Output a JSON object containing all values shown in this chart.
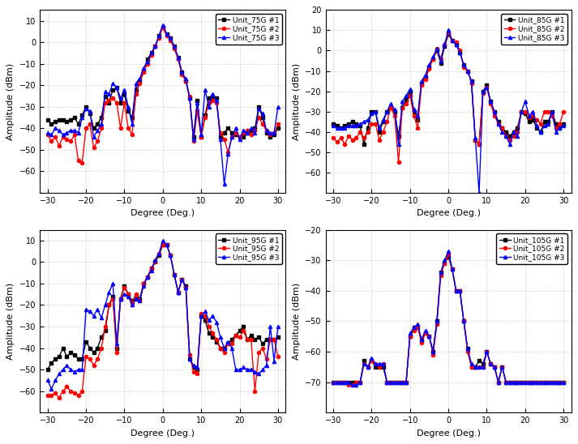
{
  "degrees": [
    -30,
    -29,
    -28,
    -27,
    -26,
    -25,
    -24,
    -23,
    -22,
    -21,
    -20,
    -19,
    -18,
    -17,
    -16,
    -15,
    -14,
    -13,
    -12,
    -11,
    -10,
    -9,
    -8,
    -7,
    -6,
    -5,
    -4,
    -3,
    -2,
    -1,
    0,
    1,
    2,
    3,
    4,
    5,
    6,
    7,
    8,
    9,
    10,
    11,
    12,
    13,
    14,
    15,
    16,
    17,
    18,
    19,
    20,
    21,
    22,
    23,
    24,
    25,
    26,
    27,
    28,
    29,
    30
  ],
  "p75_1": [
    -36,
    -38,
    -37,
    -36,
    -36,
    -37,
    -36,
    -35,
    -38,
    -34,
    -30,
    -33,
    -40,
    -38,
    -35,
    -25,
    -28,
    -22,
    -21,
    -28,
    -24,
    -32,
    -35,
    -22,
    -18,
    -13,
    -8,
    -5,
    -2,
    3,
    7,
    4,
    2,
    -2,
    -7,
    -14,
    -18,
    -26,
    -44,
    -27,
    -44,
    -34,
    -26,
    -25,
    -26,
    -44,
    -42,
    -40,
    -42,
    -43,
    -44,
    -44,
    -42,
    -41,
    -40,
    -30,
    -35,
    -42,
    -44,
    -43,
    -40
  ],
  "p75_2": [
    -43,
    -46,
    -44,
    -48,
    -44,
    -45,
    -46,
    -43,
    -55,
    -56,
    -40,
    -38,
    -49,
    -46,
    -40,
    -28,
    -27,
    -26,
    -28,
    -40,
    -28,
    -40,
    -43,
    -24,
    -19,
    -14,
    -10,
    -6,
    -2,
    2,
    7,
    3,
    1,
    -3,
    -8,
    -15,
    -18,
    -25,
    -46,
    -32,
    -44,
    -35,
    -28,
    -27,
    -28,
    -42,
    -45,
    -51,
    -44,
    -42,
    -44,
    -42,
    -41,
    -43,
    -41,
    -35,
    -38,
    -41,
    -43,
    -42,
    -38
  ],
  "p75_3": [
    -42,
    -43,
    -40,
    -41,
    -43,
    -42,
    -41,
    -41,
    -42,
    -35,
    -31,
    -32,
    -44,
    -41,
    -38,
    -23,
    -24,
    -19,
    -21,
    -26,
    -22,
    -30,
    -38,
    -19,
    -17,
    -12,
    -9,
    -5,
    -2,
    3,
    8,
    4,
    2,
    -2,
    -7,
    -14,
    -17,
    -26,
    -45,
    -28,
    -43,
    -22,
    -30,
    -24,
    -27,
    -45,
    -66,
    -52,
    -44,
    -40,
    -45,
    -41,
    -42,
    -40,
    -42,
    -31,
    -33,
    -41,
    -42,
    -42,
    -30
  ],
  "p85_1": [
    -36,
    -37,
    -38,
    -37,
    -36,
    -35,
    -36,
    -37,
    -46,
    -38,
    -30,
    -30,
    -40,
    -35,
    -30,
    -28,
    -30,
    -42,
    -28,
    -24,
    -20,
    -30,
    -34,
    -16,
    -13,
    -8,
    -4,
    0,
    -6,
    2,
    8,
    5,
    3,
    -1,
    -7,
    -10,
    -15,
    -44,
    -46,
    -20,
    -17,
    -25,
    -30,
    -35,
    -38,
    -40,
    -42,
    -40,
    -38,
    -30,
    -31,
    -35,
    -34,
    -38,
    -40,
    -35,
    -35,
    -30,
    -36,
    -38,
    -36
  ],
  "p85_2": [
    -43,
    -45,
    -43,
    -46,
    -42,
    -44,
    -43,
    -40,
    -43,
    -40,
    -36,
    -36,
    -44,
    -40,
    -35,
    -28,
    -32,
    -55,
    -28,
    -26,
    -22,
    -32,
    -38,
    -17,
    -14,
    -9,
    -4,
    1,
    -4,
    3,
    9,
    5,
    4,
    0,
    -8,
    -10,
    -16,
    -44,
    -46,
    -21,
    -18,
    -26,
    -32,
    -36,
    -38,
    -42,
    -44,
    -42,
    -40,
    -30,
    -30,
    -33,
    -32,
    -34,
    -36,
    -30,
    -30,
    -32,
    -38,
    -36,
    -30
  ],
  "p85_3": [
    -37,
    -38,
    -38,
    -38,
    -37,
    -37,
    -37,
    -36,
    -35,
    -34,
    -31,
    -30,
    -38,
    -34,
    -30,
    -26,
    -29,
    -46,
    -25,
    -22,
    -19,
    -29,
    -32,
    -15,
    -12,
    -7,
    -3,
    1,
    -5,
    3,
    10,
    5,
    3,
    -1,
    -7,
    -10,
    -15,
    -43,
    -70,
    -20,
    -18,
    -25,
    -30,
    -36,
    -40,
    -42,
    -46,
    -40,
    -42,
    -30,
    -25,
    -32,
    -30,
    -37,
    -40,
    -37,
    -36,
    -30,
    -40,
    -38,
    -37
  ],
  "p95_1": [
    -50,
    -47,
    -45,
    -44,
    -40,
    -44,
    -42,
    -43,
    -45,
    -45,
    -37,
    -40,
    -42,
    -40,
    -35,
    -32,
    -20,
    -16,
    -40,
    -17,
    -11,
    -15,
    -18,
    -16,
    -17,
    -10,
    -7,
    -3,
    0,
    3,
    8,
    8,
    3,
    -6,
    -14,
    -8,
    -11,
    -45,
    -49,
    -50,
    -25,
    -27,
    -33,
    -35,
    -37,
    -40,
    -40,
    -38,
    -36,
    -34,
    -32,
    -30,
    -36,
    -34,
    -36,
    -35,
    -38,
    -36,
    -36,
    -36,
    -35
  ],
  "p95_2": [
    -62,
    -62,
    -61,
    -63,
    -60,
    -58,
    -60,
    -61,
    -62,
    -60,
    -44,
    -45,
    -48,
    -45,
    -40,
    -30,
    -20,
    -17,
    -42,
    -17,
    -12,
    -15,
    -19,
    -15,
    -18,
    -10,
    -7,
    -3,
    0,
    4,
    8,
    8,
    3,
    -6,
    -14,
    -8,
    -12,
    -43,
    -51,
    -52,
    -24,
    -25,
    -30,
    -33,
    -36,
    -40,
    -42,
    -38,
    -38,
    -34,
    -35,
    -32,
    -36,
    -36,
    -60,
    -42,
    -40,
    -45,
    -36,
    -36,
    -44
  ],
  "p95_3": [
    -55,
    -59,
    -55,
    -52,
    -50,
    -48,
    -50,
    -51,
    -50,
    -50,
    -22,
    -23,
    -25,
    -22,
    -26,
    -20,
    -14,
    -10,
    -38,
    -17,
    -15,
    -16,
    -20,
    -17,
    -18,
    -11,
    -7,
    -4,
    1,
    4,
    10,
    8,
    3,
    -6,
    -14,
    -8,
    -12,
    -45,
    -48,
    -49,
    -25,
    -23,
    -27,
    -25,
    -28,
    -35,
    -40,
    -37,
    -40,
    -50,
    -50,
    -49,
    -50,
    -50,
    -51,
    -52,
    -50,
    -48,
    -30,
    -46,
    -30
  ],
  "p105_1": [
    -70,
    -70,
    -70,
    -70,
    -70,
    -70,
    -70,
    -70,
    -63,
    -65,
    -63,
    -65,
    -65,
    -65,
    -70,
    -70,
    -70,
    -70,
    -70,
    -70,
    -55,
    -52,
    -52,
    -56,
    -54,
    -55,
    -60,
    -50,
    -34,
    -31,
    -29,
    -33,
    -40,
    -40,
    -50,
    -59,
    -65,
    -65,
    -63,
    -64,
    -60,
    -64,
    -65,
    -70,
    -65,
    -70,
    -70,
    -70,
    -70,
    -70,
    -70,
    -70,
    -70,
    -70,
    -70,
    -70,
    -70,
    -70,
    -70,
    -70,
    -70
  ],
  "p105_2": [
    -70,
    -70,
    -70,
    -70,
    -71,
    -71,
    -70,
    -70,
    -64,
    -65,
    -63,
    -64,
    -65,
    -64,
    -70,
    -70,
    -70,
    -70,
    -70,
    -70,
    -55,
    -53,
    -52,
    -57,
    -54,
    -55,
    -61,
    -51,
    -35,
    -31,
    -28,
    -33,
    -40,
    -40,
    -50,
    -60,
    -65,
    -65,
    -65,
    -65,
    -60,
    -64,
    -65,
    -70,
    -65,
    -70,
    -70,
    -70,
    -70,
    -70,
    -70,
    -70,
    -70,
    -70,
    -70,
    -70,
    -70,
    -70,
    -70,
    -70,
    -70
  ],
  "p105_3": [
    -70,
    -70,
    -70,
    -70,
    -70,
    -71,
    -71,
    -70,
    -64,
    -65,
    -62,
    -64,
    -64,
    -64,
    -70,
    -70,
    -70,
    -70,
    -70,
    -70,
    -54,
    -52,
    -51,
    -56,
    -53,
    -55,
    -60,
    -50,
    -34,
    -30,
    -27,
    -33,
    -40,
    -40,
    -50,
    -59,
    -64,
    -65,
    -65,
    -65,
    -60,
    -64,
    -65,
    -70,
    -65,
    -70,
    -70,
    -70,
    -70,
    -70,
    -70,
    -70,
    -70,
    -70,
    -70,
    -70,
    -70,
    -70,
    -70,
    -70,
    -70
  ],
  "colors": [
    "black",
    "red",
    "blue"
  ],
  "markers": [
    "s",
    "o",
    "^"
  ],
  "markersize": 3,
  "linewidth": 1.0,
  "legend_labels_75": [
    "Unit_75G #1",
    "Unit_75G #2",
    "Unit_75G #3"
  ],
  "legend_labels_85": [
    "Unit_85G #1",
    "Unit_85G #2",
    "Unit_85G #3"
  ],
  "legend_labels_95": [
    "Unit_95G #1",
    "Unit_95G #2",
    "Unit_95G #3"
  ],
  "legend_labels_105": [
    "Unit_105G #1",
    "Unit_105G #2",
    "Unit_105G #3"
  ],
  "xlabel": "Degree (Deg.)",
  "ylabel": "Amplitude (dBm)",
  "xlim": [
    -32,
    32
  ],
  "xticks": [
    -30,
    -20,
    -10,
    0,
    10,
    20,
    30
  ],
  "ylim_75": [
    -70,
    15
  ],
  "yticks_75": [
    -60,
    -50,
    -40,
    -30,
    -20,
    -10,
    0,
    10
  ],
  "ylim_85": [
    -70,
    20
  ],
  "yticks_85": [
    -60,
    -50,
    -40,
    -30,
    -20,
    -10,
    0,
    10,
    20
  ],
  "ylim_95": [
    -70,
    15
  ],
  "yticks_95": [
    -60,
    -50,
    -40,
    -30,
    -20,
    -10,
    0,
    10
  ],
  "ylim_105": [
    -80,
    -20
  ],
  "yticks_105": [
    -70,
    -60,
    -50,
    -40,
    -30,
    -20
  ],
  "grid_color": "#aaaaaa",
  "grid_alpha": 0.7,
  "grid_linestyle": ":"
}
